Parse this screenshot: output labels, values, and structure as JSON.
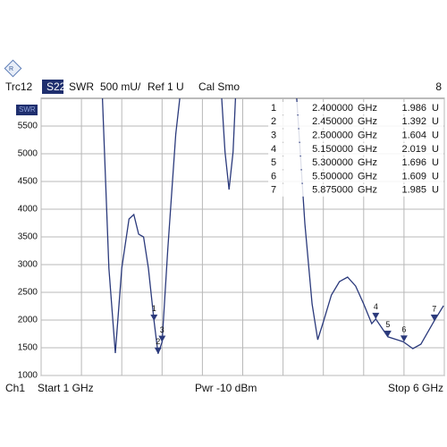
{
  "chart_data": {
    "type": "line",
    "header": [
      "Trc12",
      "S22",
      "SWR",
      "500 mU/",
      "Ref 1 U",
      "Cal Smo"
    ],
    "header_right": "8",
    "y_box_label": "SWR",
    "footer": {
      "channel": "Ch1",
      "start": "Start 1 GHz",
      "power": "Pwr -10 dBm",
      "stop": "Stop 6 GHz"
    },
    "xlim": [
      1,
      6
    ],
    "xticks": [
      1,
      1.5,
      2,
      2.5,
      3,
      3.5,
      4,
      4.5,
      5,
      5.5,
      6
    ],
    "ylim": [
      1000,
      6000
    ],
    "yticks": [
      1000,
      1500,
      2000,
      2500,
      3000,
      3500,
      4000,
      4500,
      5000,
      5500
    ],
    "grid": true,
    "series": [
      {
        "name": "Trc12",
        "color": "#2b3a7c",
        "x": [
          1.76,
          1.84,
          1.92,
          2.0,
          2.09,
          2.15,
          2.21,
          2.27,
          2.33,
          2.4,
          2.45,
          2.5,
          2.57,
          2.67,
          2.72,
          null,
          3.24,
          3.28,
          3.33,
          3.38,
          3.41,
          null,
          4.17,
          4.27,
          4.36,
          4.43,
          4.5,
          4.6,
          4.7,
          4.8,
          4.9,
          5.0,
          5.1,
          5.15,
          5.3,
          5.49,
          5.61,
          5.71,
          5.875,
          5.99
        ],
        "values": [
          6000,
          2935,
          1403,
          2935,
          3823,
          3903,
          3548,
          3500,
          2935,
          1986,
          1392,
          1604,
          3258,
          5355,
          6000,
          null,
          6000,
          5032,
          4355,
          5032,
          6000,
          null,
          6000,
          3742,
          2290,
          1645,
          1968,
          2452,
          2694,
          2774,
          2613,
          2290,
          1935,
          2019,
          1696,
          1609,
          1484,
          1565,
          1985,
          2258
        ]
      }
    ],
    "markers": [
      {
        "name": "1",
        "x": 2.4,
        "x_label": "2.400000",
        "unit": "GHz",
        "value": 1986,
        "value_label": "1.986",
        "value_unit": "U"
      },
      {
        "name": "2",
        "x": 2.45,
        "x_label": "2.450000",
        "unit": "GHz",
        "value": 1392,
        "value_label": "1.392",
        "value_unit": "U"
      },
      {
        "name": "3",
        "x": 2.5,
        "x_label": "2.500000",
        "unit": "GHz",
        "value": 1604,
        "value_label": "1.604",
        "value_unit": "U"
      },
      {
        "name": "4",
        "x": 5.15,
        "x_label": "5.150000",
        "unit": "GHz",
        "value": 2019,
        "value_label": "2.019",
        "value_unit": "U"
      },
      {
        "name": "5",
        "x": 5.3,
        "x_label": "5.300000",
        "unit": "GHz",
        "value": 1696,
        "value_label": "1.696",
        "value_unit": "U"
      },
      {
        "name": "6",
        "x": 5.5,
        "x_label": "5.500000",
        "unit": "GHz",
        "value": 1609,
        "value_label": "1.609",
        "value_unit": "U"
      },
      {
        "name": "7",
        "x": 5.875,
        "x_label": "5.875000",
        "unit": "GHz",
        "value": 1985,
        "value_label": "1.985",
        "value_unit": "U"
      }
    ]
  }
}
